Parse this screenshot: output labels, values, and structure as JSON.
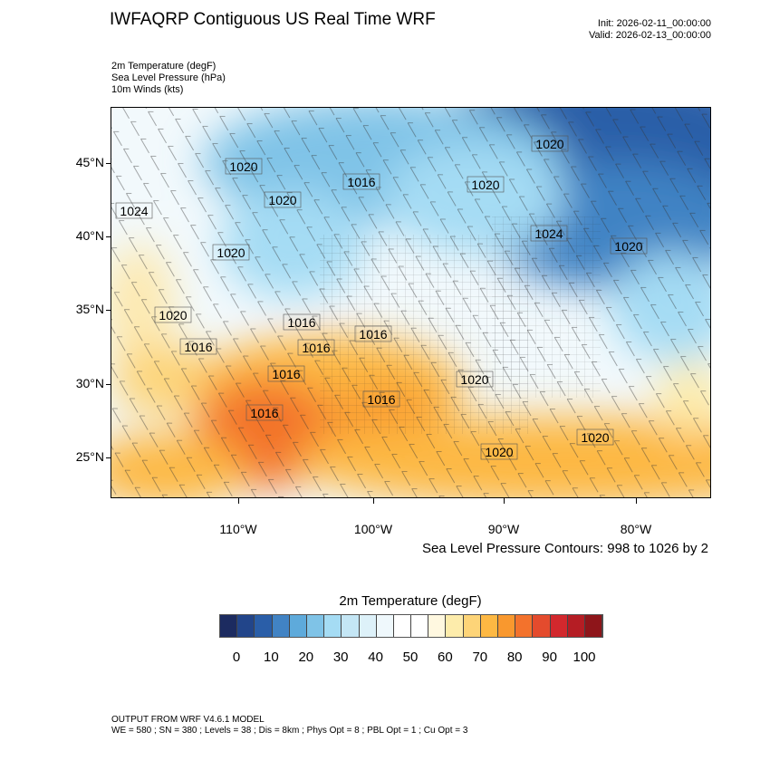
{
  "header": {
    "title": "IWFAQRP Contiguous US Real Time WRF",
    "init": "Init: 2026-02-11_00:00:00",
    "valid": "Valid: 2026-02-13_00:00:00",
    "fields": [
      "2m Temperature   (degF)",
      "Sea Level Pressure   (hPa)",
      "10m Winds   (kts)"
    ]
  },
  "map": {
    "lat_labels": [
      "45°N",
      "40°N",
      "35°N",
      "30°N",
      "25°N"
    ],
    "lon_labels": [
      "110°W",
      "100°W",
      "90°W",
      "80°W"
    ],
    "pressure_contour_labels": [
      "1020",
      "1020",
      "1016",
      "1020",
      "1020",
      "1024",
      "1024",
      "1020",
      "1020",
      "1020",
      "1016",
      "1016",
      "1016",
      "1016",
      "1016",
      "1016",
      "1020",
      "1016",
      "1020",
      "1020"
    ],
    "contour_note": "Sea Level Pressure Contours: 998 to 1026 by 2"
  },
  "colorbar": {
    "title": "2m Temperature  (degF)",
    "labels": [
      "0",
      "10",
      "20",
      "30",
      "40",
      "50",
      "60",
      "70",
      "80",
      "90",
      "100"
    ],
    "colors": [
      "#1c2b60",
      "#22458a",
      "#2a5ea8",
      "#4183c4",
      "#5eaadb",
      "#7fc3e7",
      "#a5dcf4",
      "#c4e6f5",
      "#ddf1f9",
      "#eff8fc",
      "#ffffff",
      "#ffffff",
      "#fff8e0",
      "#fdecab",
      "#fdd478",
      "#fdb843",
      "#f9982e",
      "#f3722c",
      "#e44b2d",
      "#d2282d",
      "#b51d24",
      "#8e151a"
    ]
  },
  "footer": {
    "line1": "OUTPUT FROM WRF V4.6.1 MODEL",
    "line2": "WE = 580 ; SN = 380 ; Levels = 38 ; Dis = 8km ; Phys Opt = 8 ; PBL Opt = 1 ; Cu Opt = 3"
  }
}
